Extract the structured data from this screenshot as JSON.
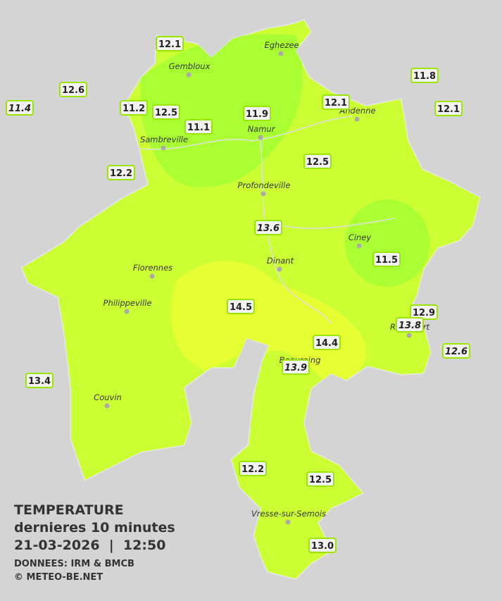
{
  "map": {
    "cities": [
      "Eghezee",
      "Gembloux",
      "Andenne",
      "Namur",
      "Sambreville",
      "Profondeville",
      "Ciney",
      "Dinant",
      "Florennes",
      "Philippeville",
      "Rochefort",
      "Beauraing",
      "Couvin",
      "Vresse-sur-Semois"
    ],
    "stations": [
      "12.1",
      "12.6",
      "11.4",
      "11.2",
      "12.5",
      "11.1",
      "11.9",
      "12.1",
      "11.8",
      "12.1",
      "12.2",
      "12.5",
      "13.6",
      "11.5",
      "14.5",
      "12.9",
      "13.8",
      "14.4",
      "12.6",
      "13.9",
      "13.4",
      "12.2",
      "12.5",
      "13.0"
    ]
  },
  "legend": {
    "title": "TEMPERATURE",
    "subtitle": "dernieres 10 minutes",
    "timestamp": "21-03-2026  |  12:50",
    "source": "DONNEES: IRM & BMCB",
    "credit": "© METEO-BE.NET"
  }
}
